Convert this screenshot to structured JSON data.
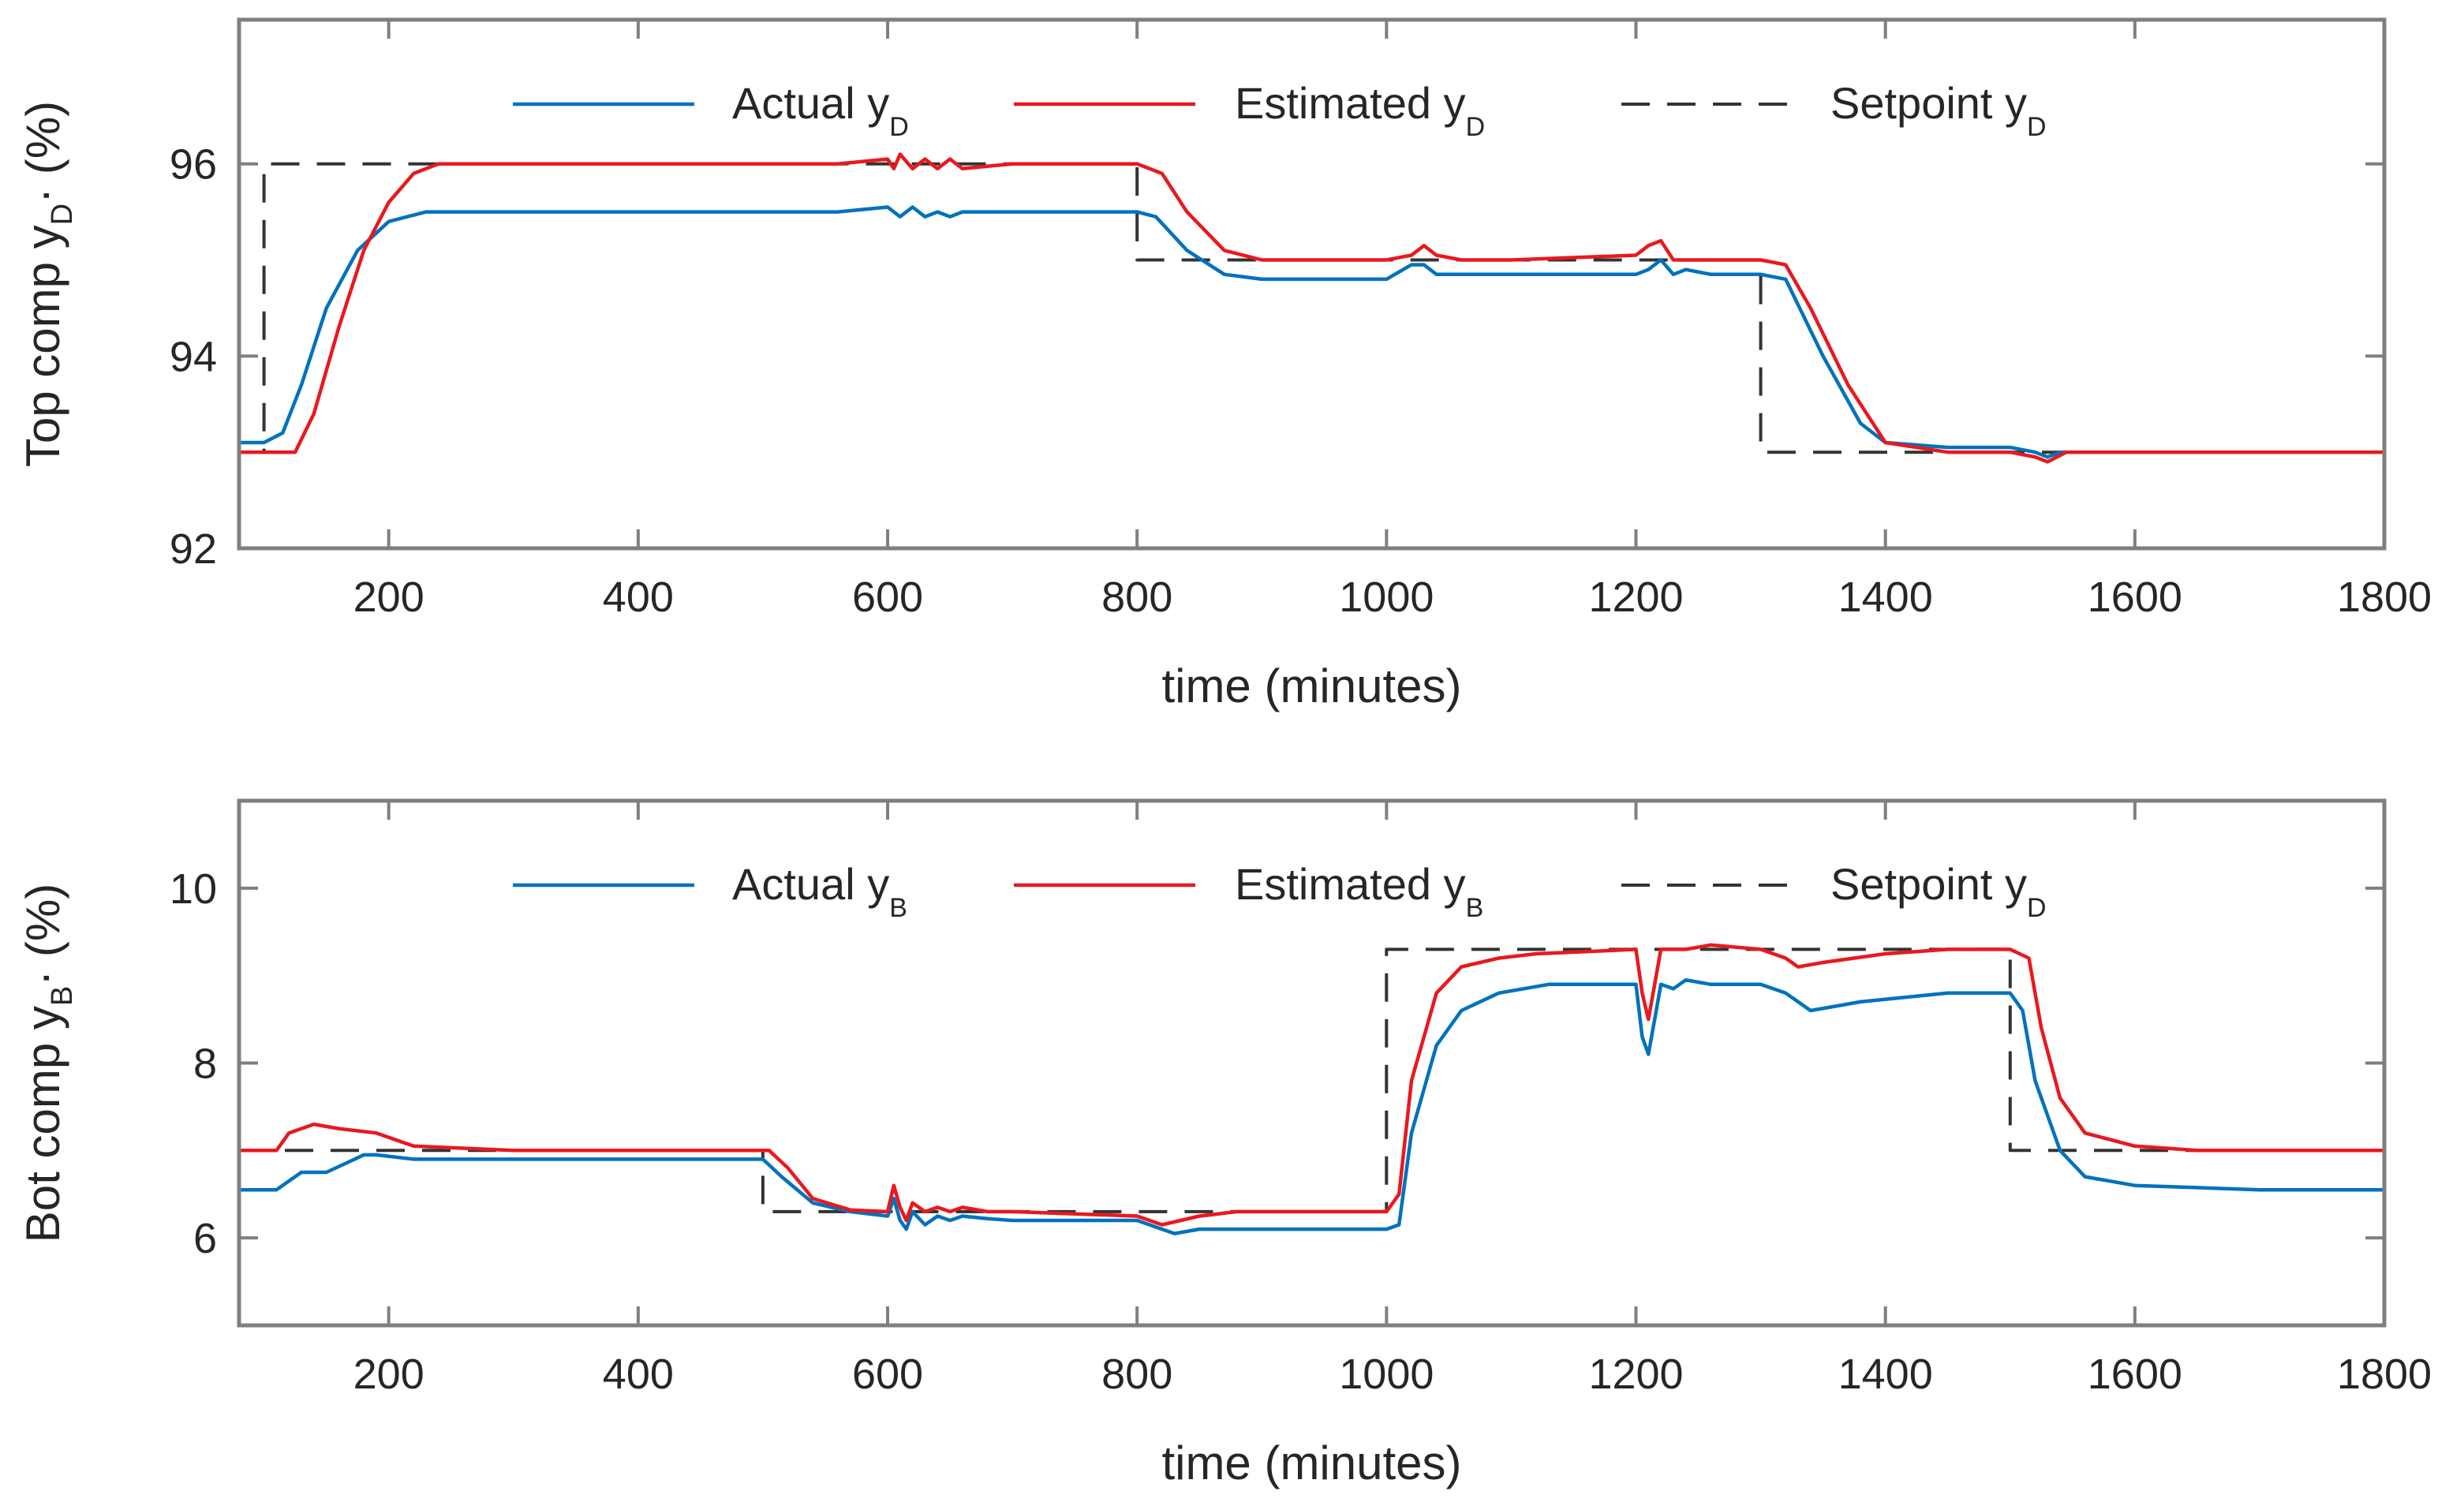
{
  "chart_data": [
    {
      "type": "line",
      "xlabel": "time (minutes)",
      "ylabel": {
        "main": "Top comp y",
        "sub": "D",
        "tail": "· (%)"
      },
      "xlim": [
        80,
        1800
      ],
      "ylim": [
        92,
        97.5
      ],
      "xticks": [
        200,
        400,
        600,
        800,
        1000,
        1200,
        1400,
        1600,
        1800
      ],
      "yticks": [
        92,
        94,
        96
      ],
      "legend_position": "top",
      "series": [
        {
          "name": "Actual",
          "label": {
            "main": "Actual y",
            "sub": "D"
          },
          "color": "#0072BD",
          "style": "solid",
          "x": [
            80,
            100,
            115,
            130,
            150,
            175,
            200,
            230,
            260,
            500,
            560,
            600,
            610,
            620,
            630,
            640,
            650,
            660,
            700,
            800,
            815,
            840,
            870,
            900,
            950,
            1000,
            1020,
            1030,
            1040,
            1060,
            1100,
            1200,
            1210,
            1220,
            1230,
            1240,
            1260,
            1300,
            1320,
            1350,
            1380,
            1400,
            1450,
            1500,
            1520,
            1530,
            1540,
            1560,
            1600,
            1800
          ],
          "y": [
            93.1,
            93.1,
            93.2,
            93.7,
            94.5,
            95.1,
            95.4,
            95.5,
            95.5,
            95.5,
            95.5,
            95.55,
            95.45,
            95.55,
            95.45,
            95.5,
            95.45,
            95.5,
            95.5,
            95.5,
            95.45,
            95.1,
            94.85,
            94.8,
            94.8,
            94.8,
            94.95,
            94.95,
            94.85,
            94.85,
            94.85,
            94.85,
            94.9,
            95.0,
            94.85,
            94.9,
            94.85,
            94.85,
            94.8,
            94.0,
            93.3,
            93.1,
            93.05,
            93.05,
            93.0,
            92.95,
            93.0,
            93.0,
            93.0,
            93.0
          ]
        },
        {
          "name": "Estimated",
          "label": {
            "main": "Estimated y",
            "sub": "D"
          },
          "color": "#E8191E",
          "style": "solid",
          "x": [
            80,
            125,
            140,
            160,
            180,
            200,
            220,
            240,
            500,
            520,
            560,
            600,
            605,
            610,
            620,
            630,
            640,
            650,
            660,
            700,
            800,
            820,
            840,
            870,
            900,
            1000,
            1020,
            1030,
            1040,
            1060,
            1100,
            1200,
            1210,
            1220,
            1230,
            1250,
            1300,
            1320,
            1340,
            1370,
            1400,
            1450,
            1500,
            1520,
            1530,
            1545,
            1600,
            1800
          ],
          "y": [
            93.0,
            93.0,
            93.4,
            94.3,
            95.1,
            95.6,
            95.9,
            96.0,
            96.0,
            96.0,
            96.0,
            96.05,
            95.95,
            96.1,
            95.95,
            96.05,
            95.95,
            96.05,
            95.95,
            96.0,
            96.0,
            95.9,
            95.5,
            95.1,
            95.0,
            95.0,
            95.05,
            95.15,
            95.05,
            95.0,
            95.0,
            95.05,
            95.15,
            95.2,
            95.0,
            95.0,
            95.0,
            94.95,
            94.5,
            93.7,
            93.1,
            93.0,
            93.0,
            92.95,
            92.9,
            93.0,
            93.0,
            93.0
          ]
        },
        {
          "name": "Setpoint",
          "label": {
            "main": "Setpoint y",
            "sub": "D"
          },
          "color": "#333333",
          "style": "dashed",
          "x": [
            80,
            100,
            100,
            800,
            800,
            1300,
            1300,
            1800
          ],
          "y": [
            93.0,
            93.0,
            96.0,
            96.0,
            95.0,
            95.0,
            93.0,
            93.0
          ]
        }
      ]
    },
    {
      "type": "line",
      "xlabel": "time (minutes)",
      "ylabel": {
        "main": "Bot comp y",
        "sub": "B",
        "tail": "· (%)"
      },
      "xlim": [
        80,
        1800
      ],
      "ylim": [
        5,
        11
      ],
      "xticks": [
        200,
        400,
        600,
        800,
        1000,
        1200,
        1400,
        1600,
        1800
      ],
      "yticks": [
        6,
        8,
        10
      ],
      "legend_position": "top",
      "series": [
        {
          "name": "Actual",
          "label": {
            "main": "Actual y",
            "sub": "B"
          },
          "color": "#0072BD",
          "style": "solid",
          "x": [
            80,
            110,
            130,
            150,
            165,
            180,
            190,
            220,
            300,
            500,
            515,
            540,
            570,
            600,
            605,
            610,
            615,
            620,
            630,
            640,
            650,
            660,
            680,
            700,
            800,
            820,
            830,
            850,
            900,
            1000,
            1010,
            1020,
            1040,
            1060,
            1090,
            1130,
            1200,
            1205,
            1210,
            1215,
            1220,
            1230,
            1240,
            1260,
            1300,
            1320,
            1340,
            1380,
            1450,
            1500,
            1510,
            1520,
            1540,
            1560,
            1600,
            1700,
            1800
          ],
          "y": [
            6.55,
            6.55,
            6.75,
            6.75,
            6.85,
            6.95,
            6.95,
            6.9,
            6.9,
            6.9,
            6.7,
            6.4,
            6.3,
            6.25,
            6.45,
            6.2,
            6.1,
            6.3,
            6.15,
            6.25,
            6.2,
            6.25,
            6.22,
            6.2,
            6.2,
            6.1,
            6.05,
            6.1,
            6.1,
            6.1,
            6.15,
            7.2,
            8.2,
            8.6,
            8.8,
            8.9,
            8.9,
            8.3,
            8.1,
            8.5,
            8.9,
            8.85,
            8.95,
            8.9,
            8.9,
            8.8,
            8.6,
            8.7,
            8.8,
            8.8,
            8.6,
            7.8,
            7.0,
            6.7,
            6.6,
            6.55,
            6.55
          ]
        },
        {
          "name": "Estimated",
          "label": {
            "main": "Estimated y",
            "sub": "B"
          },
          "color": "#E8191E",
          "style": "solid",
          "x": [
            80,
            110,
            120,
            140,
            160,
            190,
            220,
            300,
            500,
            505,
            520,
            540,
            570,
            600,
            605,
            610,
            615,
            620,
            630,
            640,
            650,
            660,
            680,
            700,
            800,
            820,
            835,
            850,
            880,
            1000,
            1010,
            1020,
            1040,
            1060,
            1090,
            1120,
            1200,
            1205,
            1210,
            1215,
            1220,
            1240,
            1260,
            1300,
            1320,
            1330,
            1350,
            1400,
            1450,
            1500,
            1515,
            1525,
            1540,
            1560,
            1600,
            1650,
            1800
          ],
          "y": [
            7.0,
            7.0,
            7.2,
            7.3,
            7.25,
            7.2,
            7.05,
            7.0,
            7.0,
            7.0,
            6.8,
            6.45,
            6.32,
            6.3,
            6.6,
            6.35,
            6.2,
            6.4,
            6.3,
            6.35,
            6.3,
            6.35,
            6.3,
            6.3,
            6.25,
            6.15,
            6.2,
            6.25,
            6.3,
            6.3,
            6.5,
            7.8,
            8.8,
            9.1,
            9.2,
            9.25,
            9.3,
            8.8,
            8.5,
            8.9,
            9.3,
            9.3,
            9.35,
            9.3,
            9.2,
            9.1,
            9.15,
            9.25,
            9.3,
            9.3,
            9.2,
            8.4,
            7.6,
            7.2,
            7.05,
            7.0,
            7.0
          ]
        },
        {
          "name": "Setpoint",
          "label": {
            "main": "Setpoint y",
            "sub": "D"
          },
          "color": "#333333",
          "style": "dashed",
          "x": [
            80,
            500,
            500,
            1000,
            1000,
            1500,
            1500,
            1800
          ],
          "y": [
            7.0,
            7.0,
            6.3,
            6.3,
            9.3,
            9.3,
            7.0,
            7.0
          ]
        }
      ]
    }
  ]
}
